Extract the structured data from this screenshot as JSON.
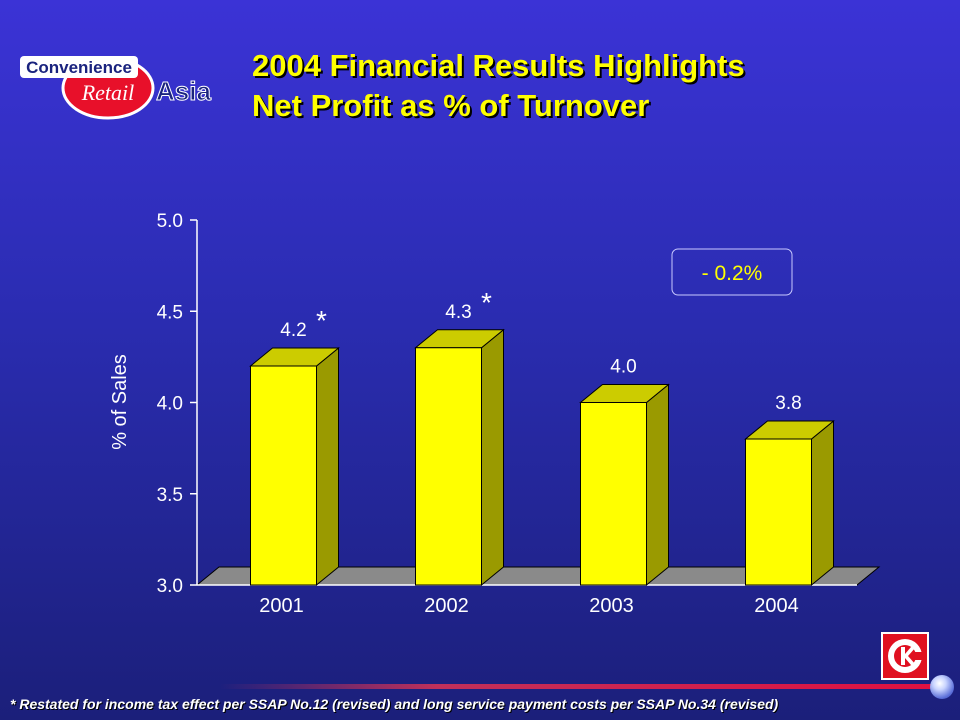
{
  "logo": {
    "line1": "Convenience",
    "line2": "Retail",
    "line3": "Asia"
  },
  "header": {
    "title_line1": "2004 Financial Results Highlights",
    "title_line2": "Net Profit as % of Turnover"
  },
  "chart_data": {
    "type": "bar",
    "categories": [
      "2001",
      "2002",
      "2003",
      "2004"
    ],
    "values": [
      4.2,
      4.3,
      4.0,
      3.8
    ],
    "data_labels": [
      "4.2",
      "4.3",
      "4.0",
      "3.8"
    ],
    "restated_marker": [
      "*",
      "*",
      "",
      ""
    ],
    "ylabel": "% of Sales",
    "ylim": [
      3.0,
      5.0
    ],
    "yticks": [
      "3.0",
      "3.5",
      "4.0",
      "4.5",
      "5.0"
    ],
    "annotation": "- 0.2%",
    "grid": false,
    "three_d": true,
    "bar_color": "#ffff00",
    "bar_side_color": "#9a9a00",
    "bar_top_color": "#cccc00",
    "floor_color": "#8a8a8a"
  },
  "footer": {
    "note": "* Restated for income tax effect per SSAP No.12 (revised) and long service payment costs per SSAP No.34 (revised)"
  },
  "brand_icon": "circle-k-icon",
  "colors": {
    "title": "#ffff00",
    "text": "#ffffff",
    "accent_red": "#e01020"
  }
}
